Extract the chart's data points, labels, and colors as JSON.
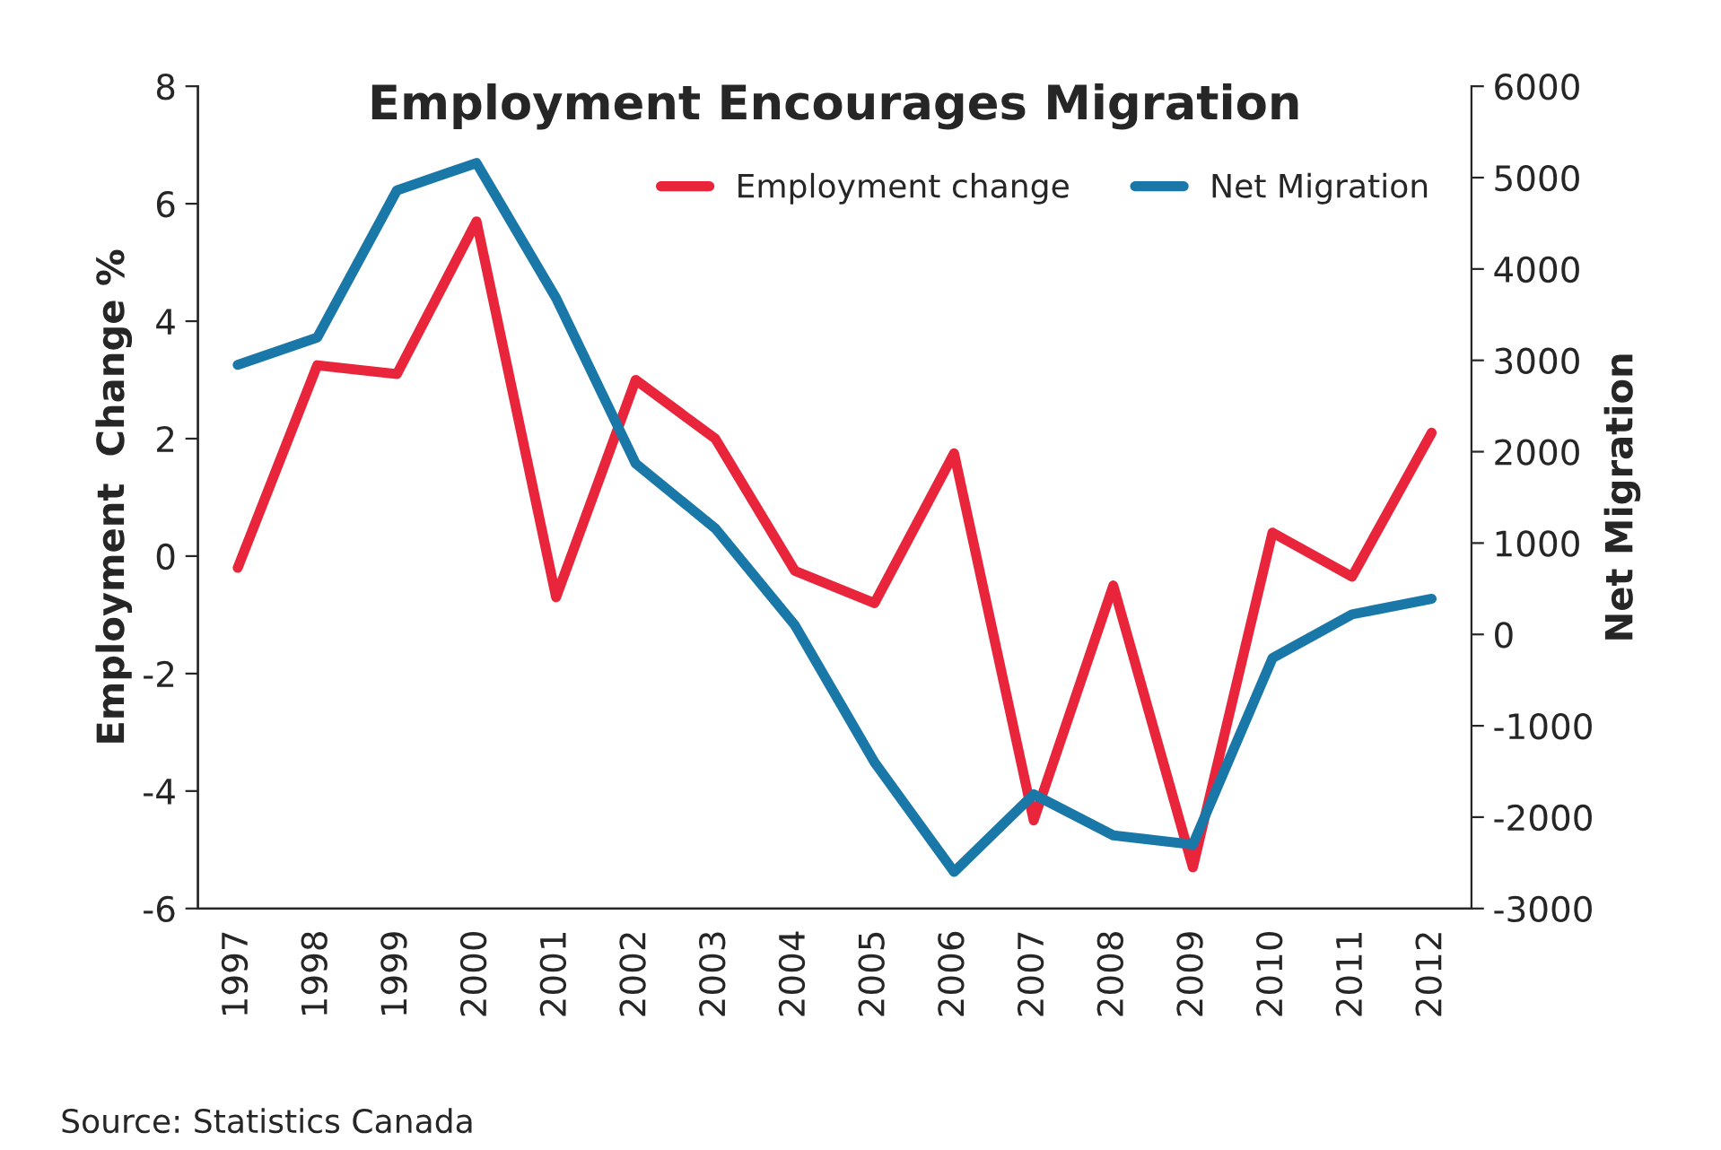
{
  "chart_data": {
    "type": "line",
    "title": "Employment Encourages Migration",
    "ylabel": "Employment  Change %",
    "y2label": "Net Migration",
    "categories": [
      "1997",
      "1998",
      "1999",
      "2000",
      "2001",
      "2002",
      "2003",
      "2004",
      "2005",
      "2006",
      "2007",
      "2008",
      "2009",
      "2010",
      "2011",
      "2012"
    ],
    "series": [
      {
        "name": "Employment change",
        "color": "#e8253a",
        "values": [
          -0.2,
          3.25,
          3.1,
          5.7,
          -0.7,
          3.0,
          2.0,
          -0.25,
          -0.8,
          1.75,
          -4.5,
          -0.5,
          -5.3,
          0.4,
          -0.35,
          2.1
        ]
      },
      {
        "name": "Net Migration",
        "color": "#1a78a8",
        "axis": "y2",
        "values": [
          2950,
          3250,
          4860,
          5160,
          3680,
          1870,
          1160,
          100,
          -1400,
          -2600,
          -1750,
          -2200,
          -2300,
          -260,
          220,
          390
        ]
      }
    ],
    "ylim": [
      -6,
      8
    ],
    "yticks": [
      -6,
      -4,
      -2,
      0,
      2,
      4,
      6,
      8
    ],
    "y2lim": [
      -3000,
      6000
    ],
    "y2ticks": [
      -3000,
      -2000,
      -1000,
      0,
      1000,
      2000,
      3000,
      4000,
      5000,
      6000
    ],
    "legend": "top right",
    "grid": false,
    "annotations": [
      "Source: Statistics Canada"
    ]
  }
}
